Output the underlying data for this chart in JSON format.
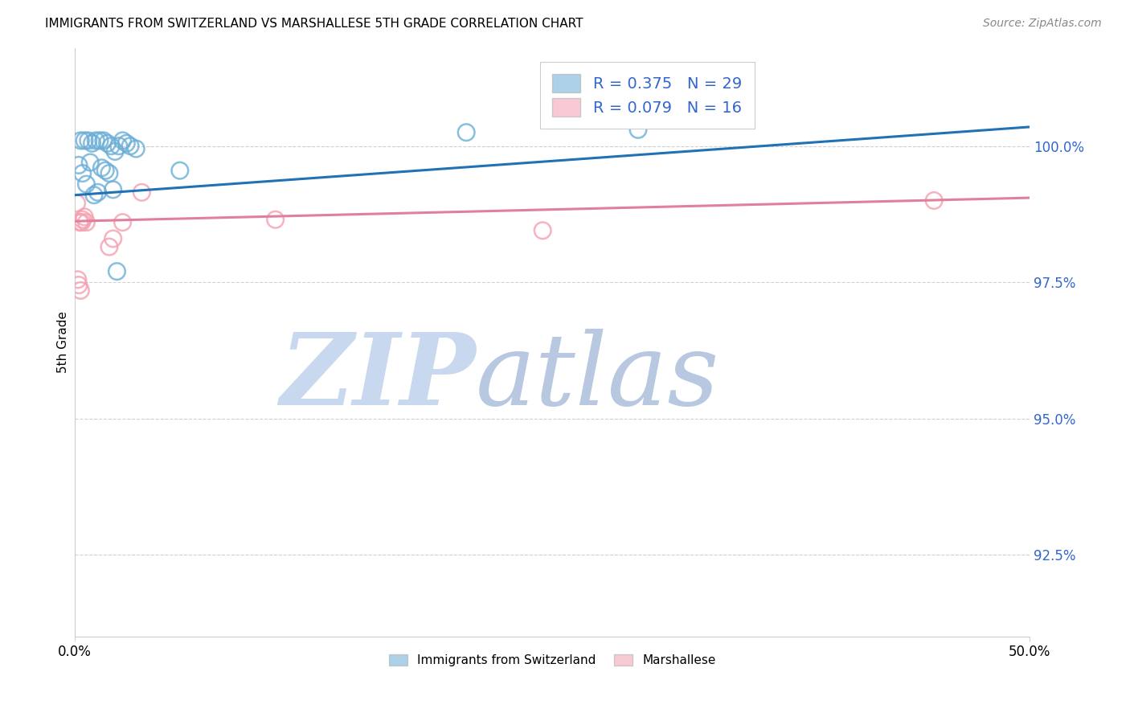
{
  "title": "IMMIGRANTS FROM SWITZERLAND VS MARSHALLESE 5TH GRADE CORRELATION CHART",
  "source": "Source: ZipAtlas.com",
  "ylabel": "5th Grade",
  "ytick_vals": [
    92.5,
    95.0,
    97.5,
    100.0
  ],
  "xlim": [
    0.0,
    50.0
  ],
  "ylim": [
    91.0,
    101.8
  ],
  "legend_label_blue": "Immigrants from Switzerland",
  "legend_label_pink": "Marshallese",
  "blue_color": "#6baed6",
  "pink_color": "#f4a0b0",
  "trendline_blue": "#2171b5",
  "trendline_pink": "#e07fa0",
  "watermark_zip": "ZIP",
  "watermark_atlas": "atlas",
  "watermark_color_zip": "#c8d8ee",
  "watermark_color_atlas": "#b8c8e0",
  "blue_r": 0.375,
  "blue_n": 29,
  "pink_r": 0.079,
  "pink_n": 16,
  "blue_points_x": [
    0.2,
    0.3,
    0.5,
    0.7,
    0.9,
    1.1,
    1.3,
    1.5,
    1.7,
    1.9,
    2.1,
    2.3,
    2.5,
    2.7,
    2.9,
    3.2,
    0.4,
    0.6,
    0.8,
    1.0,
    1.2,
    1.4,
    1.6,
    1.8,
    2.0,
    5.5,
    2.2,
    20.5,
    29.5
  ],
  "blue_points_y": [
    99.65,
    100.1,
    100.1,
    100.1,
    100.05,
    100.1,
    100.1,
    100.1,
    100.05,
    100.0,
    99.9,
    100.0,
    100.1,
    100.05,
    100.0,
    99.95,
    99.5,
    99.3,
    99.7,
    99.1,
    99.15,
    99.6,
    99.55,
    99.5,
    99.2,
    99.55,
    97.7,
    100.25,
    100.3
  ],
  "pink_points_x": [
    0.1,
    0.15,
    0.2,
    0.3,
    0.4,
    0.5,
    1.8,
    2.5,
    3.5,
    0.25,
    0.35,
    10.5,
    0.6,
    2.0,
    45.0,
    24.5
  ],
  "pink_points_y": [
    98.95,
    97.55,
    97.45,
    97.35,
    98.65,
    98.7,
    98.15,
    98.6,
    99.15,
    98.6,
    98.6,
    98.65,
    98.6,
    98.3,
    99.0,
    98.45
  ],
  "blue_trend_x0": 0.0,
  "blue_trend_y0": 99.1,
  "blue_trend_x1": 50.0,
  "blue_trend_y1": 100.35,
  "pink_trend_x0": 0.0,
  "pink_trend_y0": 98.62,
  "pink_trend_x1": 50.0,
  "pink_trend_y1": 99.05
}
